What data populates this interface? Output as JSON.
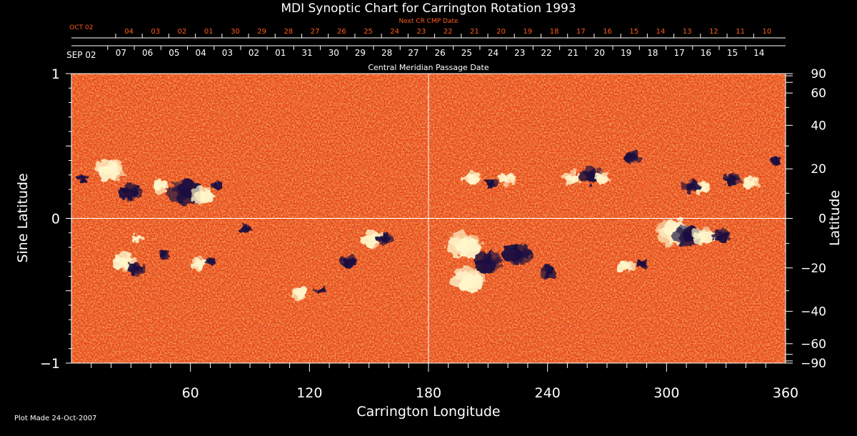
{
  "colors": {
    "background": "#000000",
    "foreground": "#ffffff",
    "next_axis": "#ff5a1e",
    "field_base": "#e8461a",
    "field_positive": "#fff6cc",
    "field_negative": "#1a1040"
  },
  "chart_data": {
    "type": "heatmap",
    "title": "MDI Synoptic Chart for Carrington Rotation 1993",
    "xlabel": "Carrington Longitude",
    "ylabel_left": "Sine Latitude",
    "ylabel_right": "Latitude",
    "xlim": [
      0,
      360
    ],
    "ylim": [
      -1,
      1
    ],
    "x_ticks": [
      60,
      120,
      180,
      240,
      300,
      360
    ],
    "x_tick_labels": [
      "60",
      "120",
      "180",
      "240",
      "300",
      "360"
    ],
    "y_ticks_left": [
      1,
      0,
      -1
    ],
    "y_tick_labels_left": [
      "1",
      "0",
      "−1"
    ],
    "right_latitude_ticks": [
      90,
      60,
      40,
      20,
      0,
      -20,
      -40,
      -60,
      -90
    ],
    "right_latitude_labels": [
      "90",
      "60",
      "40",
      "20",
      "0",
      "−20",
      "−40",
      "−60",
      "−90"
    ],
    "reference_lines": {
      "longitude": 180,
      "sine_latitude": 0
    },
    "cmp_axis": {
      "title": "Central Meridian Passage Date",
      "start_label": "SEP 02",
      "start_position_lon": 5,
      "labels": [
        "07",
        "06",
        "05",
        "04",
        "03",
        "02",
        "01",
        "31",
        "30",
        "29",
        "28",
        "27",
        "26",
        "25",
        "24",
        "23",
        "22",
        "21",
        "20",
        "19",
        "18",
        "17",
        "16",
        "15",
        "14"
      ],
      "first_label_lon": 25,
      "step_lon": 13.4
    },
    "next_cmp_axis": {
      "title": "Next CR CMP Date",
      "start_label": "OCT 02",
      "start_position_lon": 5,
      "labels": [
        "04",
        "03",
        "02",
        "01",
        "30",
        "29",
        "28",
        "27",
        "26",
        "25",
        "24",
        "23",
        "22",
        "21",
        "20",
        "19",
        "18",
        "17",
        "16",
        "15",
        "14",
        "13",
        "12",
        "11",
        "10"
      ],
      "first_label_lon": 29,
      "step_lon": 13.4
    },
    "regions": [
      {
        "lon": 5,
        "sinlat": 0.28,
        "polarity": "negative",
        "size": 2
      },
      {
        "lon": 20,
        "sinlat": 0.34,
        "polarity": "positive",
        "size": 5
      },
      {
        "lon": 30,
        "sinlat": 0.18,
        "polarity": "negative",
        "size": 4
      },
      {
        "lon": 45,
        "sinlat": 0.22,
        "polarity": "positive",
        "size": 3
      },
      {
        "lon": 57,
        "sinlat": 0.18,
        "polarity": "negative",
        "size": 6
      },
      {
        "lon": 66,
        "sinlat": 0.16,
        "polarity": "positive",
        "size": 4
      },
      {
        "lon": 73,
        "sinlat": 0.23,
        "polarity": "negative",
        "size": 2
      },
      {
        "lon": 34,
        "sinlat": -0.14,
        "polarity": "positive",
        "size": 2
      },
      {
        "lon": 27,
        "sinlat": -0.3,
        "polarity": "positive",
        "size": 4
      },
      {
        "lon": 33,
        "sinlat": -0.35,
        "polarity": "negative",
        "size": 3
      },
      {
        "lon": 46,
        "sinlat": -0.25,
        "polarity": "negative",
        "size": 2
      },
      {
        "lon": 64,
        "sinlat": -0.31,
        "polarity": "positive",
        "size": 3
      },
      {
        "lon": 70,
        "sinlat": -0.3,
        "polarity": "negative",
        "size": 2
      },
      {
        "lon": 88,
        "sinlat": -0.07,
        "polarity": "negative",
        "size": 2
      },
      {
        "lon": 115,
        "sinlat": -0.52,
        "polarity": "positive",
        "size": 3
      },
      {
        "lon": 125,
        "sinlat": -0.5,
        "polarity": "negative",
        "size": 2
      },
      {
        "lon": 152,
        "sinlat": -0.14,
        "polarity": "positive",
        "size": 4
      },
      {
        "lon": 158,
        "sinlat": -0.14,
        "polarity": "negative",
        "size": 3
      },
      {
        "lon": 140,
        "sinlat": -0.3,
        "polarity": "negative",
        "size": 3
      },
      {
        "lon": 198,
        "sinlat": -0.18,
        "polarity": "positive",
        "size": 6
      },
      {
        "lon": 200,
        "sinlat": -0.42,
        "polarity": "positive",
        "size": 6
      },
      {
        "lon": 210,
        "sinlat": -0.3,
        "polarity": "negative",
        "size": 5
      },
      {
        "lon": 225,
        "sinlat": -0.25,
        "polarity": "negative",
        "size": 5
      },
      {
        "lon": 240,
        "sinlat": -0.37,
        "polarity": "negative",
        "size": 3
      },
      {
        "lon": 202,
        "sinlat": 0.28,
        "polarity": "positive",
        "size": 3
      },
      {
        "lon": 212,
        "sinlat": 0.24,
        "polarity": "negative",
        "size": 2
      },
      {
        "lon": 220,
        "sinlat": 0.27,
        "polarity": "positive",
        "size": 3
      },
      {
        "lon": 252,
        "sinlat": 0.28,
        "polarity": "positive",
        "size": 3
      },
      {
        "lon": 262,
        "sinlat": 0.3,
        "polarity": "negative",
        "size": 4
      },
      {
        "lon": 268,
        "sinlat": 0.28,
        "polarity": "positive",
        "size": 3
      },
      {
        "lon": 283,
        "sinlat": 0.42,
        "polarity": "negative",
        "size": 3
      },
      {
        "lon": 303,
        "sinlat": -0.1,
        "polarity": "positive",
        "size": 6
      },
      {
        "lon": 310,
        "sinlat": -0.12,
        "polarity": "negative",
        "size": 5
      },
      {
        "lon": 318,
        "sinlat": -0.12,
        "polarity": "positive",
        "size": 4
      },
      {
        "lon": 328,
        "sinlat": -0.12,
        "polarity": "negative",
        "size": 3
      },
      {
        "lon": 280,
        "sinlat": -0.33,
        "polarity": "positive",
        "size": 3
      },
      {
        "lon": 288,
        "sinlat": -0.32,
        "polarity": "negative",
        "size": 2
      },
      {
        "lon": 318,
        "sinlat": 0.22,
        "polarity": "positive",
        "size": 3
      },
      {
        "lon": 312,
        "sinlat": 0.22,
        "polarity": "negative",
        "size": 3
      },
      {
        "lon": 333,
        "sinlat": 0.27,
        "polarity": "negative",
        "size": 3
      },
      {
        "lon": 343,
        "sinlat": 0.25,
        "polarity": "positive",
        "size": 3
      },
      {
        "lon": 355,
        "sinlat": 0.4,
        "polarity": "negative",
        "size": 2
      }
    ]
  },
  "footer": {
    "plot_made": "Plot Made 24-Oct-2007"
  }
}
